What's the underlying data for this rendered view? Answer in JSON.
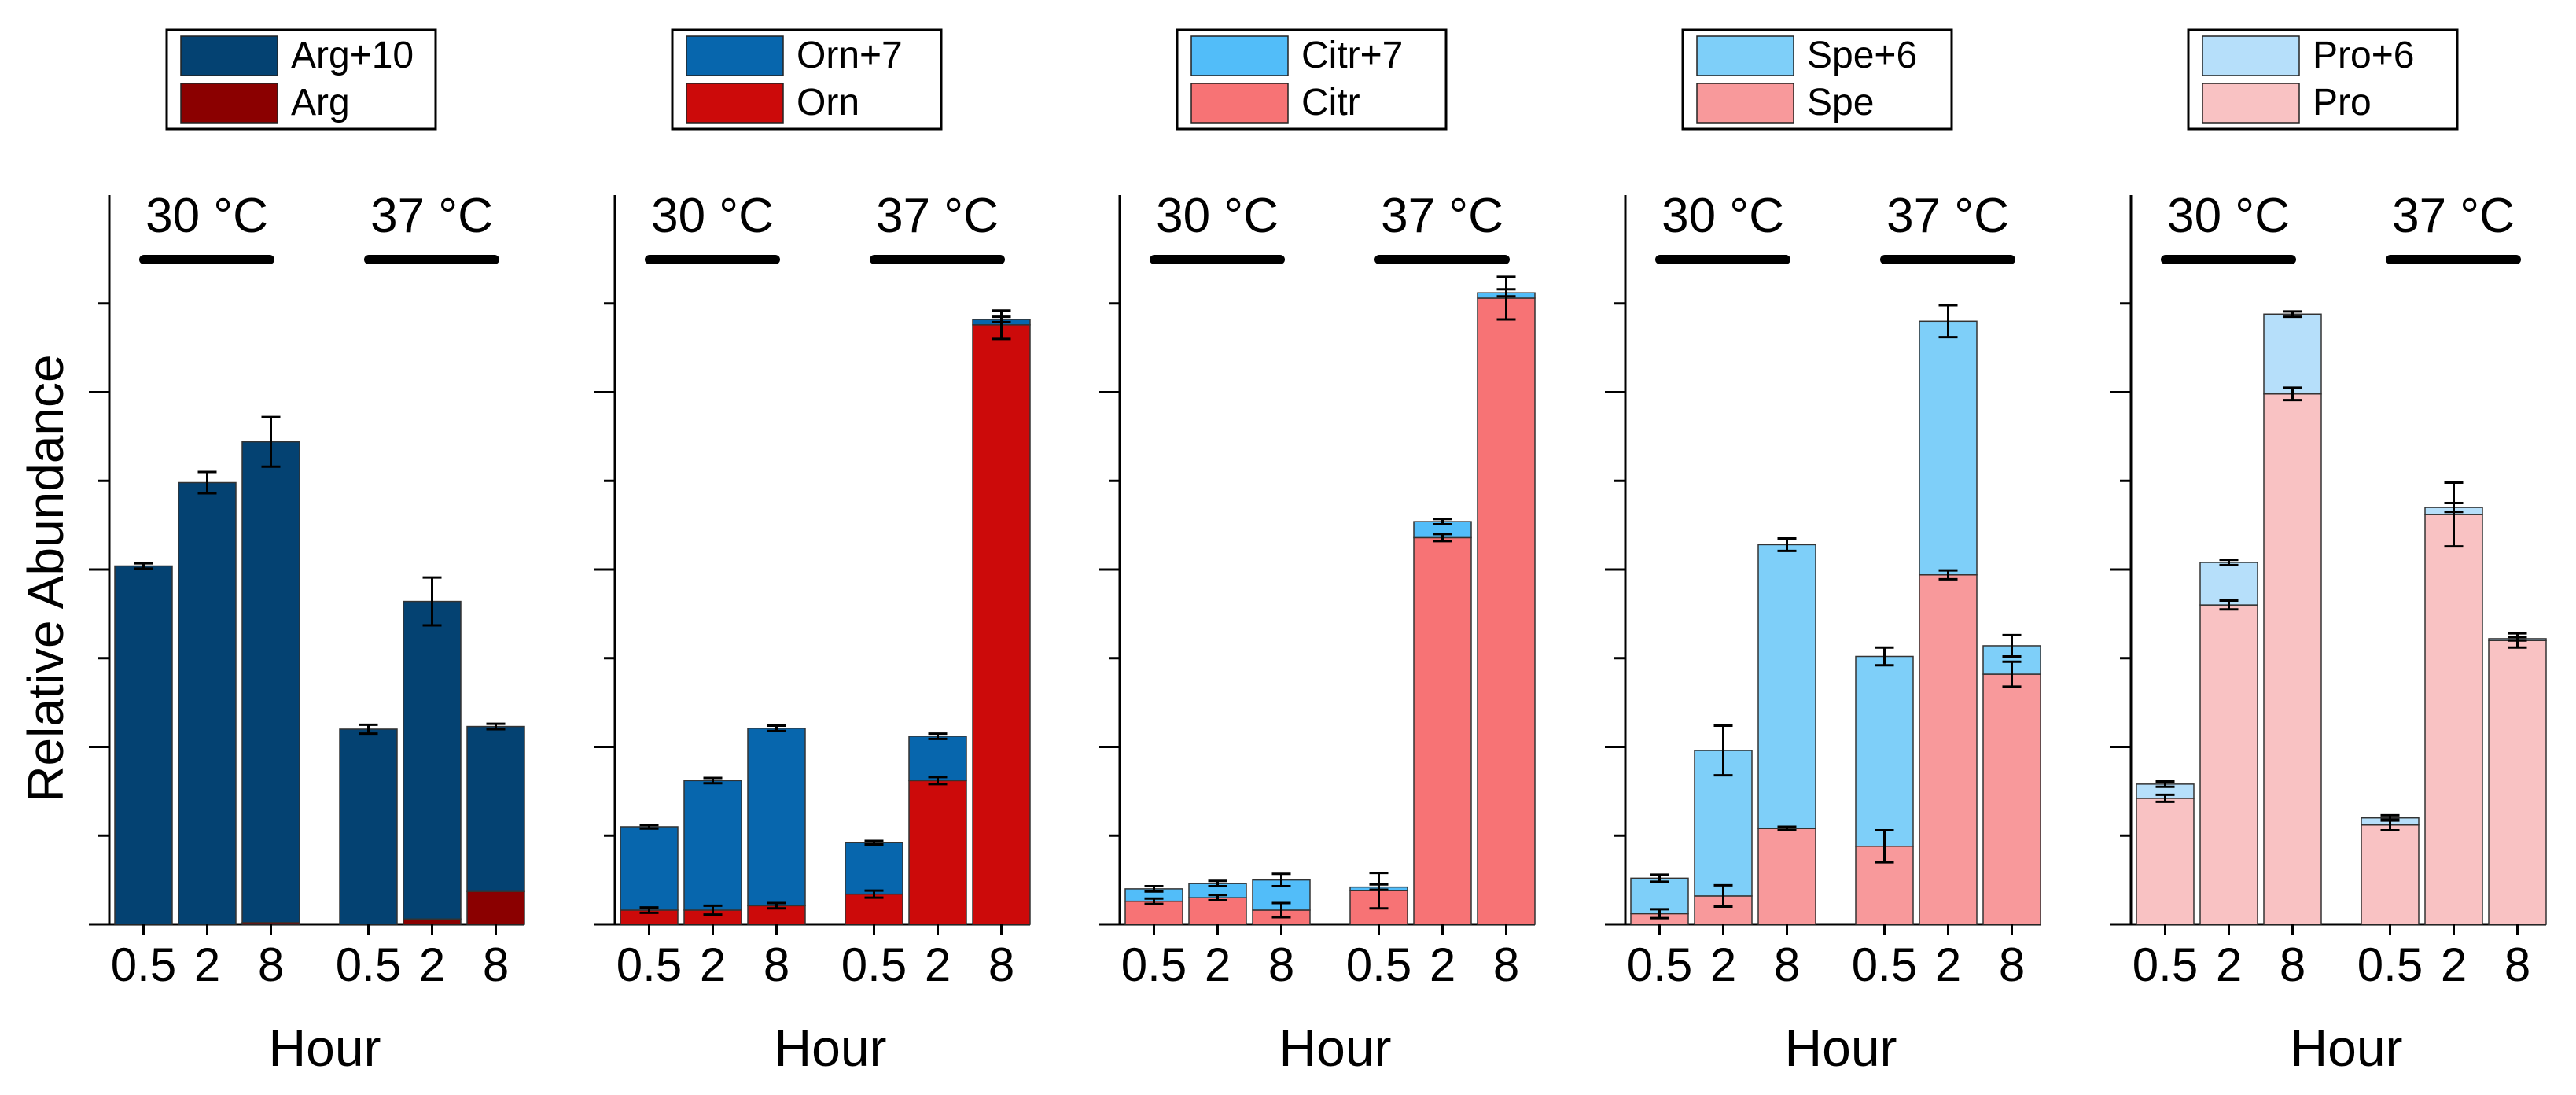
{
  "figure": {
    "ylabel": "Relative Abundance",
    "xlabel": "Hour",
    "groups": [
      "30 °C",
      "37 °C"
    ],
    "timepoints": [
      "0.5",
      "2",
      "8"
    ]
  },
  "chart_data": [
    {
      "type": "bar",
      "stacked": true,
      "title": "Arg",
      "categories": [
        "0.5",
        "2",
        "8",
        "0.5",
        "2",
        "8"
      ],
      "groups": [
        "30 °C",
        "30 °C",
        "30 °C",
        "37 °C",
        "37 °C",
        "37 °C"
      ],
      "series": [
        {
          "name": "Arg",
          "color": "#8b0000",
          "values": [
            0.0,
            0.0,
            0.1,
            0.0,
            0.3,
            1.85
          ],
          "errors": [
            0,
            0,
            0,
            0,
            0,
            0
          ]
        },
        {
          "name": "Arg+10",
          "color": "#044272",
          "values": [
            20.2,
            24.9,
            27.1,
            11.0,
            17.9,
            9.3
          ],
          "errors": [
            0.15,
            0.6,
            1.4,
            0.25,
            1.35,
            0.15
          ]
        }
      ],
      "xlabel": "Hour",
      "ylabel": "Relative Abundance",
      "ylim": [
        0,
        40
      ]
    },
    {
      "type": "bar",
      "stacked": true,
      "title": "Orn",
      "categories": [
        "0.5",
        "2",
        "8",
        "0.5",
        "2",
        "8"
      ],
      "groups": [
        "30 °C",
        "30 °C",
        "30 °C",
        "37 °C",
        "37 °C",
        "37 °C"
      ],
      "series": [
        {
          "name": "Orn",
          "color": "#cc0a0a",
          "values": [
            0.8,
            0.8,
            1.05,
            1.7,
            8.1,
            33.8
          ],
          "errors": [
            0.15,
            0.25,
            0.15,
            0.2,
            0.2,
            0.8
          ]
        },
        {
          "name": "Orn+7",
          "color": "#0766ad",
          "values": [
            4.7,
            7.3,
            10.0,
            2.9,
            2.5,
            0.3
          ],
          "errors": [
            0.1,
            0.15,
            0.15,
            0.1,
            0.15,
            0.15
          ]
        }
      ],
      "xlabel": "Hour",
      "ylabel": "Relative Abundance",
      "ylim": [
        0,
        40
      ]
    },
    {
      "type": "bar",
      "stacked": true,
      "title": "Citr",
      "categories": [
        "0.5",
        "2",
        "8",
        "0.5",
        "2",
        "8"
      ],
      "groups": [
        "30 °C",
        "30 °C",
        "30 °C",
        "37 °C",
        "37 °C",
        "37 °C"
      ],
      "series": [
        {
          "name": "Citr",
          "color": "#f77375",
          "values": [
            1.3,
            1.5,
            0.8,
            1.9,
            21.8,
            35.3
          ],
          "errors": [
            0.15,
            0.15,
            0.4,
            1.0,
            0.2,
            1.2
          ]
        },
        {
          "name": "Citr+7",
          "color": "#52bdf9",
          "values": [
            0.7,
            0.8,
            1.7,
            0.2,
            0.9,
            0.3
          ],
          "errors": [
            0.15,
            0.15,
            0.35,
            0.15,
            0.15,
            0.2
          ]
        }
      ],
      "xlabel": "Hour",
      "ylabel": "Relative Abundance",
      "ylim": [
        0,
        40
      ]
    },
    {
      "type": "bar",
      "stacked": true,
      "title": "Spe",
      "categories": [
        "0.5",
        "2",
        "8",
        "0.5",
        "2",
        "8"
      ],
      "groups": [
        "30 °C",
        "30 °C",
        "30 °C",
        "37 °C",
        "37 °C",
        "37 °C"
      ],
      "series": [
        {
          "name": "Spe",
          "color": "#f8999b",
          "values": [
            0.6,
            1.6,
            5.4,
            4.4,
            19.7,
            14.1
          ],
          "errors": [
            0.25,
            0.6,
            0.1,
            0.9,
            0.25,
            0.7
          ]
        },
        {
          "name": "Spe+6",
          "color": "#7ecff9",
          "values": [
            2.0,
            8.2,
            16.0,
            10.7,
            14.3,
            1.6
          ],
          "errors": [
            0.2,
            1.4,
            0.35,
            0.5,
            0.9,
            0.6
          ]
        }
      ],
      "xlabel": "Hour",
      "ylabel": "Relative Abundance",
      "ylim": [
        0,
        40
      ]
    },
    {
      "type": "bar",
      "stacked": true,
      "title": "Pro",
      "categories": [
        "0.5",
        "2",
        "8",
        "0.5",
        "2",
        "8"
      ],
      "groups": [
        "30 °C",
        "30 °C",
        "30 °C",
        "37 °C",
        "37 °C",
        "37 °C"
      ],
      "series": [
        {
          "name": "Pro",
          "color": "#f9c2c3",
          "values": [
            7.1,
            18.0,
            29.9,
            5.6,
            23.1,
            16.0
          ],
          "errors": [
            0.2,
            0.25,
            0.35,
            0.3,
            1.8,
            0.4
          ]
        },
        {
          "name": "Pro+6",
          "color": "#b6dffa",
          "values": [
            0.8,
            2.4,
            4.5,
            0.4,
            0.4,
            0.1
          ],
          "errors": [
            0.15,
            0.15,
            0.15,
            0.15,
            0.25,
            0.1
          ]
        }
      ],
      "xlabel": "Hour",
      "ylabel": "Relative Abundance",
      "ylim": [
        0,
        40
      ]
    }
  ]
}
